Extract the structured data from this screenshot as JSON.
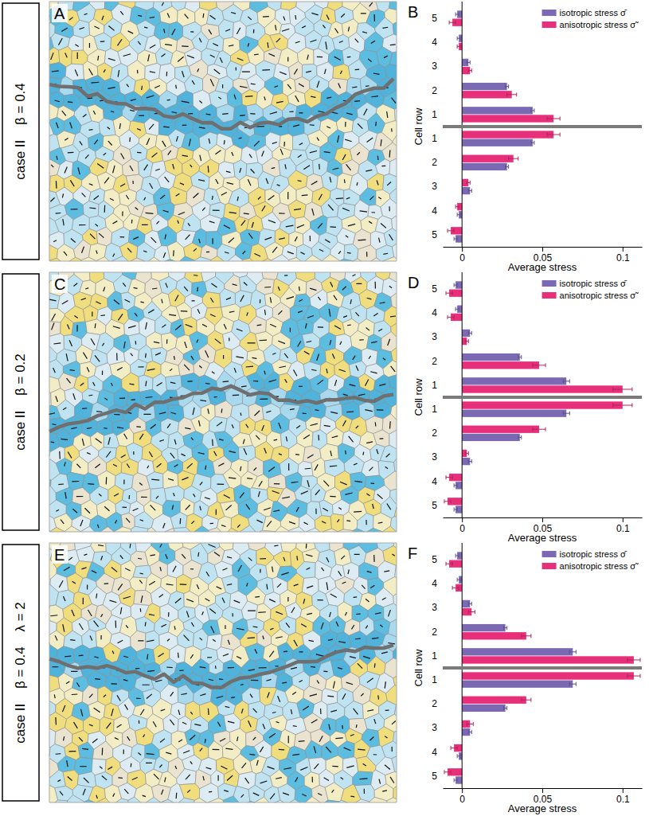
{
  "image_panels": [
    {
      "panel_label": "A",
      "labels": [
        "case II",
        "β = 0.4"
      ]
    },
    {
      "panel_label": "C",
      "labels": [
        "case II",
        "β = 0.2"
      ]
    },
    {
      "panel_label": "E",
      "labels": [
        "case II",
        "β = 0.4",
        "λ = 2"
      ]
    }
  ],
  "chart_data": [
    {
      "type": "bar",
      "orientation": "horizontal",
      "panel_label": "B",
      "x_label": "Average stress",
      "y_label": "Cell row",
      "categories": [
        5,
        4,
        3,
        2,
        1,
        1,
        2,
        3,
        4,
        5
      ],
      "xlim": [
        -0.012,
        0.112
      ],
      "xticks": [
        0,
        0.05,
        0.1
      ],
      "legend": "upper right",
      "series": [
        {
          "name": "isotropic stress σ̄",
          "color": "#7b6ab3",
          "values": [
            -0.003,
            -0.002,
            0.004,
            0.028,
            0.044,
            0.044,
            0.028,
            0.005,
            -0.002,
            -0.004
          ],
          "errors": [
            0.001,
            0.001,
            0.001,
            0.001,
            0.001,
            0.001,
            0.001,
            0.001,
            0.001,
            0.001
          ]
        },
        {
          "name": "anisotropic stress σ̃",
          "color": "#e8307a",
          "values": [
            -0.006,
            -0.002,
            0.005,
            0.031,
            0.057,
            0.057,
            0.032,
            0.004,
            -0.003,
            -0.007
          ],
          "errors": [
            0.002,
            0.001,
            0.001,
            0.003,
            0.004,
            0.004,
            0.003,
            0.001,
            0.001,
            0.002
          ]
        }
      ]
    },
    {
      "type": "bar",
      "orientation": "horizontal",
      "panel_label": "D",
      "x_label": "Average stress",
      "y_label": "Cell row",
      "categories": [
        5,
        4,
        3,
        2,
        1,
        1,
        2,
        3,
        4,
        5
      ],
      "xlim": [
        -0.012,
        0.112
      ],
      "xticks": [
        0,
        0.05,
        0.1
      ],
      "legend": "upper right",
      "series": [
        {
          "name": "isotropic stress σ̄",
          "color": "#7b6ab3",
          "values": [
            -0.004,
            -0.003,
            0.005,
            0.036,
            0.065,
            0.065,
            0.036,
            0.005,
            -0.004,
            -0.004
          ],
          "errors": [
            0.001,
            0.001,
            0.001,
            0.001,
            0.002,
            0.002,
            0.001,
            0.001,
            0.001,
            0.001
          ]
        },
        {
          "name": "anisotropic stress σ̃",
          "color": "#e8307a",
          "values": [
            -0.008,
            -0.007,
            0.003,
            0.048,
            0.1,
            0.1,
            0.048,
            0.003,
            -0.008,
            -0.009
          ],
          "errors": [
            0.002,
            0.002,
            0.001,
            0.004,
            0.006,
            0.006,
            0.004,
            0.001,
            0.002,
            0.002
          ]
        }
      ]
    },
    {
      "type": "bar",
      "orientation": "horizontal",
      "panel_label": "F",
      "x_label": "Average stress",
      "y_label": "Cell row",
      "categories": [
        5,
        4,
        3,
        2,
        1,
        1,
        2,
        3,
        4,
        5
      ],
      "xlim": [
        -0.012,
        0.112
      ],
      "xticks": [
        0,
        0.05,
        0.1
      ],
      "legend": "upper right",
      "series": [
        {
          "name": "isotropic stress σ̄",
          "color": "#7b6ab3",
          "values": [
            -0.003,
            -0.002,
            0.005,
            0.027,
            0.069,
            0.069,
            0.027,
            0.005,
            -0.002,
            -0.004
          ],
          "errors": [
            0.001,
            0.001,
            0.001,
            0.001,
            0.002,
            0.002,
            0.001,
            0.001,
            0.001,
            0.001
          ]
        },
        {
          "name": "anisotropic stress σ̃",
          "color": "#e8307a",
          "values": [
            -0.008,
            -0.004,
            0.006,
            0.04,
            0.107,
            0.107,
            0.04,
            0.005,
            -0.005,
            -0.009
          ],
          "errors": [
            0.002,
            0.002,
            0.002,
            0.003,
            0.004,
            0.004,
            0.003,
            0.002,
            0.002,
            0.002
          ]
        }
      ]
    }
  ]
}
